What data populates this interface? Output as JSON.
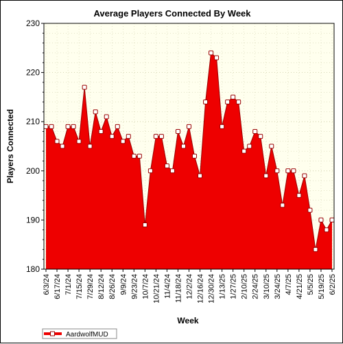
{
  "chart_data": {
    "type": "area",
    "title": "Average Players Connected By Week",
    "xlabel": "Week",
    "ylabel": "Players Connected",
    "ylim": [
      180,
      230
    ],
    "y_ticks": [
      180,
      190,
      200,
      210,
      220,
      230
    ],
    "grid": true,
    "legend_position": "bottom-left",
    "colors": {
      "fill": "#ee0000",
      "line": "#990000",
      "plot_bg": "#ffffee",
      "grid": "#c8c8a0"
    },
    "x_tick_labels": [
      "6/3/24",
      "6/17/24",
      "7/1/24",
      "7/15/24",
      "7/29/24",
      "8/12/24",
      "8/26/24",
      "9/9/24",
      "9/23/24",
      "10/7/24",
      "10/21/24",
      "11/4/24",
      "11/18/24",
      "12/2/24",
      "12/16/24",
      "12/30/24",
      "1/13/25",
      "1/27/25",
      "2/10/25",
      "2/24/25",
      "3/10/25",
      "3/24/25",
      "4/7/25",
      "4/21/25",
      "5/5/25",
      "5/19/25",
      "6/2/25"
    ],
    "series": [
      {
        "name": "AardwolfMUD",
        "values": [
          209,
          209,
          206,
          205,
          209,
          209,
          206,
          217,
          205,
          212,
          208,
          211,
          207,
          209,
          206,
          207,
          203,
          203,
          189,
          200,
          207,
          207,
          201,
          200,
          208,
          205,
          209,
          203,
          199,
          214,
          224,
          223,
          209,
          214,
          215,
          214,
          204,
          205,
          208,
          207,
          199,
          205,
          200,
          193,
          200,
          200,
          195,
          199,
          192,
          184,
          190,
          188,
          190
        ]
      }
    ]
  }
}
